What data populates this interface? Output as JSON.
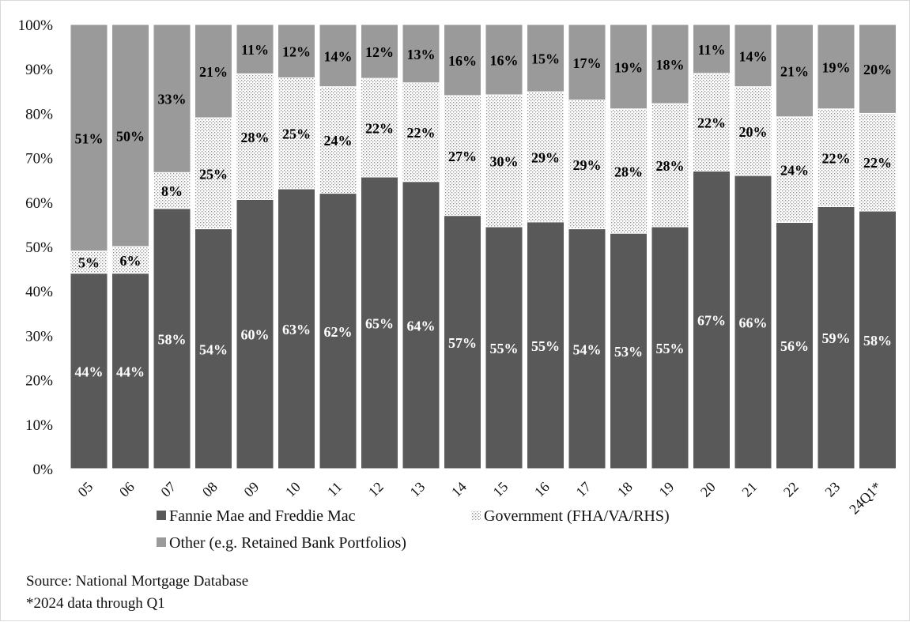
{
  "chart_data": {
    "type": "bar",
    "stacked": true,
    "percent_stacked": true,
    "title": "",
    "xlabel": "",
    "ylabel": "",
    "ylim": [
      0,
      100
    ],
    "yticks": [
      "0%",
      "10%",
      "20%",
      "30%",
      "40%",
      "50%",
      "60%",
      "70%",
      "80%",
      "90%",
      "100%"
    ],
    "grid": false,
    "legend_position": "bottom",
    "categories": [
      "05",
      "06",
      "07",
      "08",
      "09",
      "10",
      "11",
      "12",
      "13",
      "14",
      "15",
      "16",
      "17",
      "18",
      "19",
      "20",
      "21",
      "22",
      "23",
      "24Q1*"
    ],
    "series": [
      {
        "name": "Fannie Mae and Freddie Mac",
        "color": "#595959",
        "pattern": "solid",
        "values": [
          44,
          44,
          58,
          54,
          60,
          63,
          62,
          65,
          64,
          57,
          55,
          55,
          54,
          53,
          55,
          67,
          66,
          56,
          59,
          58
        ],
        "labels": [
          "44%",
          "44%",
          "58%",
          "54%",
          "60%",
          "63%",
          "62%",
          "65%",
          "64%",
          "57%",
          "55%",
          "55%",
          "54%",
          "53%",
          "55%",
          "67%",
          "66%",
          "56%",
          "59%",
          "58%"
        ]
      },
      {
        "name": "Government (FHA/VA/RHS)",
        "color": "#bfbfbf",
        "pattern": "dotted",
        "values": [
          5,
          6,
          8,
          25,
          28,
          25,
          24,
          22,
          22,
          27,
          30,
          29,
          29,
          28,
          28,
          22,
          20,
          24,
          22,
          22
        ],
        "labels": [
          "5%",
          "6%",
          "8%",
          "25%",
          "28%",
          "25%",
          "24%",
          "22%",
          "22%",
          "27%",
          "30%",
          "29%",
          "29%",
          "28%",
          "28%",
          "22%",
          "20%",
          "24%",
          "22%",
          "22%"
        ]
      },
      {
        "name": "Other (e.g. Retained Bank Portfolios)",
        "color": "#9a9a9a",
        "pattern": "solid",
        "values": [
          51,
          50,
          33,
          21,
          11,
          12,
          14,
          12,
          13,
          16,
          16,
          15,
          17,
          19,
          18,
          11,
          14,
          21,
          19,
          20
        ],
        "labels": [
          "51%",
          "50%",
          "33%",
          "21%",
          "11%",
          "12%",
          "14%",
          "12%",
          "13%",
          "16%",
          "16%",
          "15%",
          "17%",
          "19%",
          "18%",
          "11%",
          "14%",
          "21%",
          "19%",
          "20%"
        ]
      }
    ]
  },
  "notes": {
    "source": "Source: National Mortgage Database",
    "footnote": "*2024 data through Q1"
  }
}
